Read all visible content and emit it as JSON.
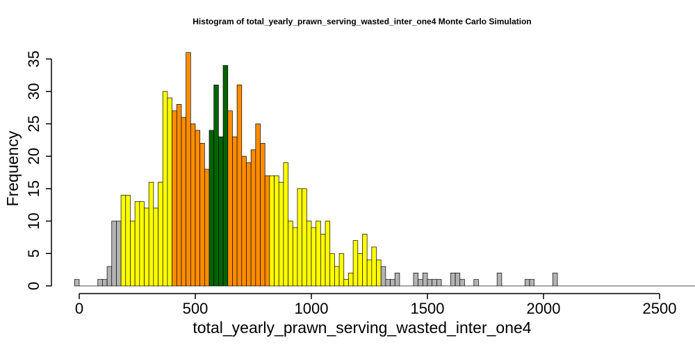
{
  "chart_data": {
    "type": "bar",
    "title": "Histogram of  total_yearly_prawn_serving_wasted_inter_one4  Monte Carlo Simulation",
    "xlabel": "total_yearly_prawn_serving_wasted_inter_one4",
    "ylabel": "Frequency",
    "xlim": [
      0,
      2500
    ],
    "ylim": [
      0,
      35
    ],
    "x_ticks": [
      0,
      500,
      1000,
      1500,
      2000,
      2500
    ],
    "y_ticks": [
      0,
      5,
      10,
      15,
      20,
      25,
      30,
      35
    ],
    "bin_start": -20,
    "bin_width": 20,
    "values": [
      1,
      0,
      0,
      0,
      0,
      1,
      1,
      3,
      10,
      10,
      14,
      14,
      10,
      13,
      13,
      12,
      16,
      12,
      16,
      30,
      29,
      27,
      28,
      26,
      36,
      25,
      24,
      22,
      18,
      24,
      31,
      23,
      34,
      27,
      23,
      31,
      20,
      19,
      21,
      25,
      22,
      17,
      17,
      17,
      16,
      19,
      10,
      9,
      15,
      15,
      10,
      9,
      10,
      8,
      10,
      5,
      3,
      5,
      1,
      2,
      7,
      5,
      8,
      4,
      6,
      4,
      3,
      1,
      1,
      2,
      0,
      0,
      0,
      2,
      1,
      2,
      1,
      1,
      1,
      0,
      0,
      2,
      2,
      1,
      0,
      0,
      1,
      0,
      0,
      0,
      0,
      2,
      0,
      0,
      0,
      0,
      0,
      1,
      1,
      0,
      0,
      0,
      0,
      2,
      0,
      0,
      0,
      0,
      0,
      0,
      0,
      0,
      0,
      0,
      0,
      0,
      0,
      0,
      0,
      0,
      0,
      0,
      0,
      0,
      0,
      0,
      0,
      0,
      0,
      0,
      0,
      0,
      0,
      0,
      0,
      0,
      0
    ],
    "color_ranges": [
      {
        "from": -20,
        "to": 180,
        "color": "#b3b3b3"
      },
      {
        "from": 180,
        "to": 400,
        "color": "#ffff00"
      },
      {
        "from": 400,
        "to": 560,
        "color": "#ff8c00"
      },
      {
        "from": 560,
        "to": 640,
        "color": "#006400"
      },
      {
        "from": 640,
        "to": 820,
        "color": "#ff8c00"
      },
      {
        "from": 820,
        "to": 1300,
        "color": "#ffff00"
      },
      {
        "from": 1300,
        "to": 2500,
        "color": "#b3b3b3"
      }
    ],
    "grid": false,
    "legend": "none"
  }
}
